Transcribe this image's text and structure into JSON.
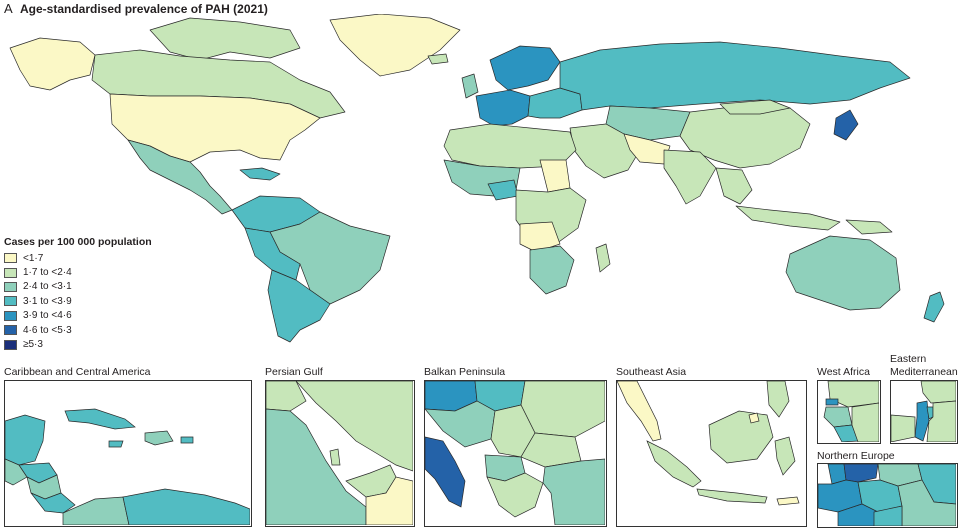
{
  "figure": {
    "panel_letter": "A",
    "title": "Age-standardised prevalence of PAH (2021)"
  },
  "legend": {
    "title": "Cases per 100 000 population",
    "items": [
      {
        "label": "<1·7",
        "color": "#fbf8c6"
      },
      {
        "label": "1·7 to <2·4",
        "color": "#c7e6b8"
      },
      {
        "label": "2·4 to <3·1",
        "color": "#8fd0bb"
      },
      {
        "label": "3·1 to <3·9",
        "color": "#52bcc2"
      },
      {
        "label": "3·9 to <4·6",
        "color": "#2b94c0"
      },
      {
        "label": "4·6 to <5·3",
        "color": "#2462a8"
      },
      {
        "label": "≥5·3",
        "color": "#1b2f7a"
      }
    ]
  },
  "insets": [
    {
      "label": "Caribbean and Central America"
    },
    {
      "label": "Persian Gulf"
    },
    {
      "label": "Balkan Peninsula"
    },
    {
      "label": "Southeast Asia"
    },
    {
      "label": "West Africa"
    },
    {
      "label": "Eastern Mediterranean"
    },
    {
      "label": "Northern Europe"
    }
  ]
}
